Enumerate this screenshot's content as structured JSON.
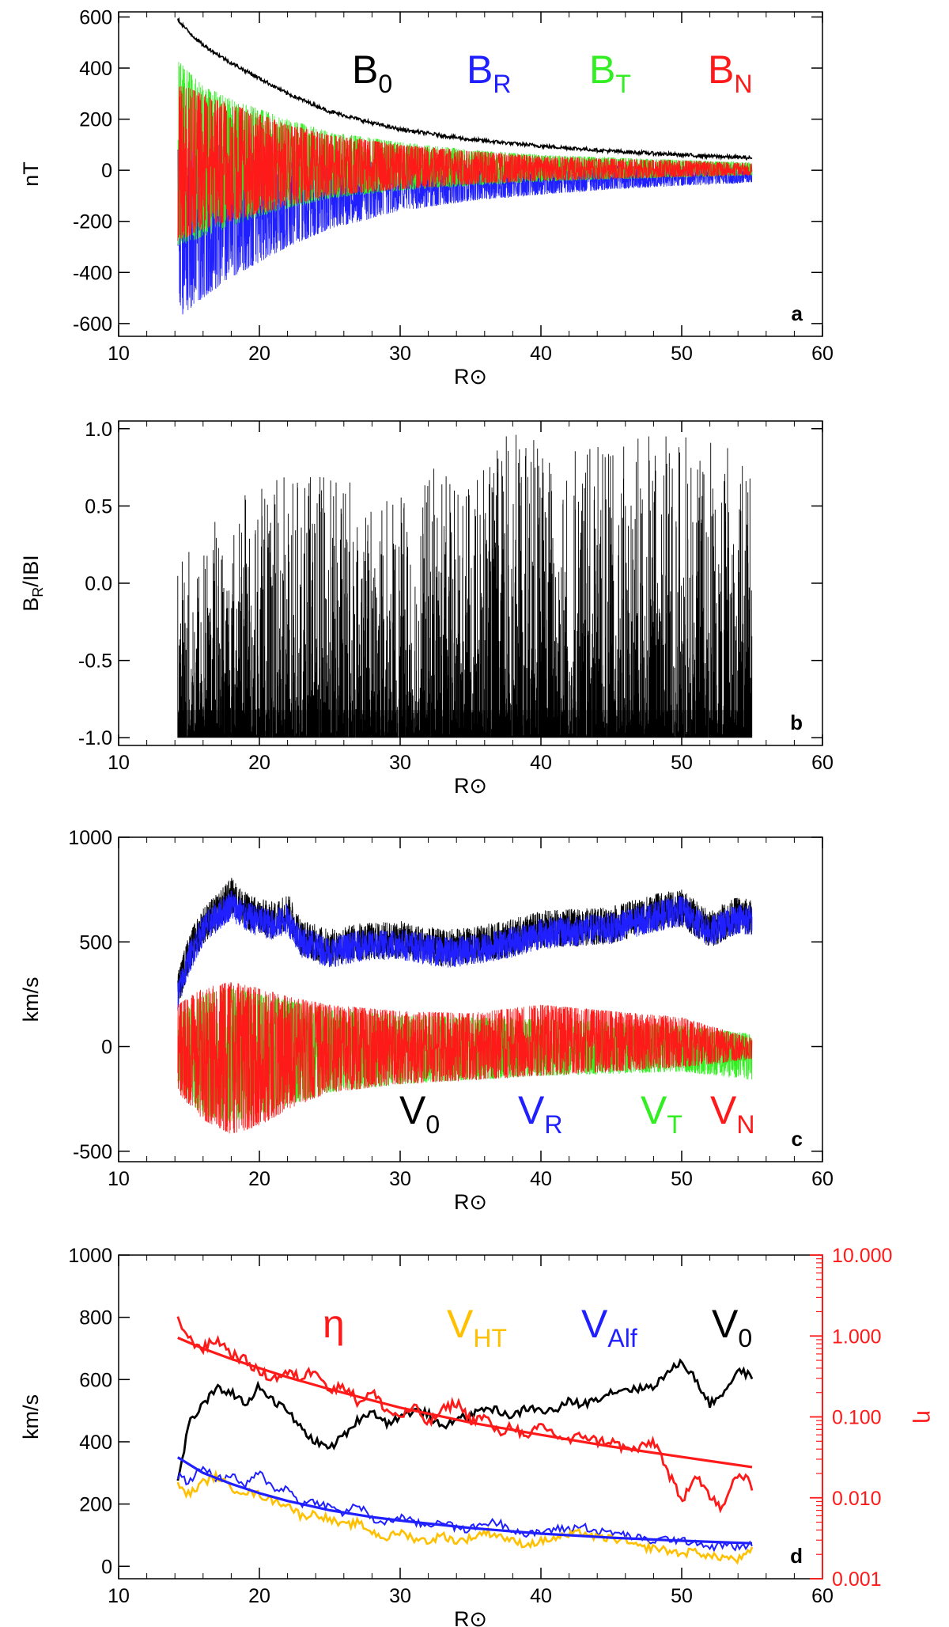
{
  "colors": {
    "black": "#000000",
    "blue": "#1f1fff",
    "green": "#33ee22",
    "red": "#ff1a1a",
    "orange": "#ffc000",
    "eta_axis": "#ff1a1a"
  },
  "chart_data": [
    {
      "id": "a",
      "type": "line",
      "panel_label": "a",
      "xlabel": "R⊙",
      "ylabel": "nT",
      "xlim": [
        10,
        60
      ],
      "ylim": [
        -650,
        620
      ],
      "xticks": [
        10,
        20,
        30,
        40,
        50,
        60
      ],
      "yticks": [
        -600,
        -400,
        -200,
        0,
        200,
        400,
        600
      ],
      "x_range_of_data": [
        14.2,
        55
      ],
      "legend": [
        {
          "base": "B",
          "sub": "0",
          "color": "#000000"
        },
        {
          "base": "B",
          "sub": "R",
          "color": "#1f1fff"
        },
        {
          "base": "B",
          "sub": "T",
          "color": "#33ee22"
        },
        {
          "base": "B",
          "sub": "N",
          "color": "#ff1a1a"
        }
      ],
      "series": [
        {
          "name": "B0",
          "kind": "envelope_line",
          "x": [
            14.2,
            15,
            16,
            18,
            20,
            22,
            25,
            28,
            30,
            35,
            40,
            45,
            50,
            55
          ],
          "values": [
            590,
            540,
            490,
            420,
            360,
            300,
            230,
            185,
            160,
            120,
            95,
            75,
            60,
            48
          ]
        },
        {
          "name": "BR",
          "kind": "band",
          "x": [
            14.2,
            16,
            18,
            20,
            22,
            25,
            30,
            35,
            40,
            45,
            50,
            55
          ],
          "values_low": [
            -580,
            -500,
            -420,
            -360,
            -300,
            -230,
            -160,
            -120,
            -95,
            -75,
            -60,
            -48
          ],
          "values_high": [
            120,
            110,
            90,
            80,
            60,
            45,
            30,
            25,
            20,
            18,
            15,
            10
          ]
        },
        {
          "name": "BT",
          "kind": "band",
          "x": [
            14.2,
            16,
            18,
            20,
            22,
            25,
            30,
            35,
            40,
            45,
            50,
            55
          ],
          "values_low": [
            -300,
            -260,
            -220,
            -180,
            -150,
            -110,
            -80,
            -60,
            -45,
            -35,
            -28,
            -20
          ],
          "values_high": [
            430,
            330,
            280,
            240,
            200,
            150,
            110,
            80,
            60,
            50,
            40,
            30
          ]
        },
        {
          "name": "BN",
          "kind": "band",
          "x": [
            14.2,
            16,
            18,
            20,
            22,
            25,
            30,
            35,
            40,
            45,
            50,
            55
          ],
          "values_low": [
            -280,
            -230,
            -200,
            -170,
            -140,
            -100,
            -75,
            -55,
            -42,
            -33,
            -26,
            -20
          ],
          "values_high": [
            340,
            300,
            260,
            220,
            180,
            140,
            100,
            75,
            55,
            45,
            38,
            28
          ]
        }
      ]
    },
    {
      "id": "b",
      "type": "line",
      "panel_label": "b",
      "xlabel": "R⊙",
      "ylabel": "BR/IBI",
      "ylabel_base": "B",
      "ylabel_sub": "R",
      "ylabel_rest": "/IBI",
      "xlim": [
        10,
        60
      ],
      "ylim": [
        -1.05,
        1.05
      ],
      "xticks": [
        10,
        20,
        30,
        40,
        50,
        60
      ],
      "yticks": [
        -1.0,
        -0.5,
        0.0,
        0.5,
        1.0
      ],
      "ytick_labels": [
        "-1.0",
        "-0.5",
        "0.0",
        "0.5",
        "1.0"
      ],
      "x_range_of_data": [
        14.2,
        55
      ],
      "series": [
        {
          "name": "BR/|B|",
          "kind": "spikes",
          "x": [
            15,
            17.5,
            20,
            22.5,
            25,
            27.5,
            30,
            32.5,
            35,
            37.5,
            40,
            42.5,
            45,
            47.5,
            50,
            52.5,
            55
          ],
          "peak_values": [
            0.25,
            0.45,
            0.65,
            0.7,
            0.72,
            0.6,
            0.55,
            0.75,
            0.6,
            0.95,
            1.0,
            0.85,
            0.9,
            0.95,
            0.95,
            0.9,
            1.0
          ],
          "baseline": -1.0
        }
      ]
    },
    {
      "id": "c",
      "type": "line",
      "panel_label": "c",
      "xlabel": "R⊙",
      "ylabel": "km/s",
      "xlim": [
        10,
        60
      ],
      "ylim": [
        -550,
        1000
      ],
      "xticks": [
        10,
        20,
        30,
        40,
        50,
        60
      ],
      "yticks": [
        -500,
        0,
        500,
        1000
      ],
      "x_range_of_data": [
        14.2,
        55
      ],
      "legend": [
        {
          "base": "V",
          "sub": "0",
          "color": "#000000"
        },
        {
          "base": "V",
          "sub": "R",
          "color": "#1f1fff"
        },
        {
          "base": "V",
          "sub": "T",
          "color": "#33ee22"
        },
        {
          "base": "V",
          "sub": "N",
          "color": "#ff1a1a"
        }
      ],
      "series": [
        {
          "name": "V0",
          "kind": "line",
          "x": [
            14.2,
            15,
            16,
            17,
            18,
            19,
            20,
            21,
            22,
            23,
            25,
            27,
            30,
            33,
            35,
            38,
            40,
            43,
            45,
            48,
            50,
            52,
            54,
            55
          ],
          "values": [
            270,
            450,
            580,
            640,
            720,
            650,
            620,
            600,
            650,
            520,
            470,
            500,
            510,
            470,
            480,
            520,
            560,
            570,
            580,
            640,
            660,
            560,
            630,
            610
          ]
        },
        {
          "name": "VR",
          "kind": "line",
          "x": [
            14.2,
            15,
            16,
            17,
            18,
            19,
            20,
            21,
            22,
            23,
            25,
            27,
            30,
            33,
            35,
            38,
            40,
            43,
            45,
            48,
            50,
            52,
            54,
            55
          ],
          "values": [
            240,
            420,
            560,
            620,
            680,
            620,
            600,
            580,
            610,
            500,
            450,
            480,
            490,
            450,
            460,
            500,
            540,
            555,
            565,
            620,
            650,
            545,
            615,
            600
          ]
        },
        {
          "name": "VT",
          "kind": "band",
          "x": [
            14.2,
            16,
            18,
            20,
            22,
            25,
            30,
            35,
            40,
            45,
            50,
            55
          ],
          "values_low": [
            -200,
            -330,
            -360,
            -330,
            -280,
            -220,
            -180,
            -160,
            -140,
            -130,
            -120,
            -160
          ],
          "values_high": [
            150,
            250,
            280,
            250,
            220,
            180,
            150,
            140,
            130,
            120,
            100,
            60
          ]
        },
        {
          "name": "VN",
          "kind": "band",
          "x": [
            14.2,
            16,
            18,
            20,
            22,
            25,
            30,
            35,
            40,
            45,
            50,
            55
          ],
          "values_low": [
            -220,
            -350,
            -420,
            -380,
            -300,
            -220,
            -180,
            -160,
            -140,
            -120,
            -100,
            -60
          ],
          "values_high": [
            200,
            280,
            310,
            280,
            240,
            200,
            170,
            160,
            200,
            170,
            140,
            40
          ]
        }
      ]
    },
    {
      "id": "d",
      "type": "line",
      "panel_label": "d",
      "xlabel": "R⊙",
      "ylabel": "km/s",
      "ylabel_right": "η",
      "xlim": [
        10,
        60
      ],
      "ylim": [
        -40,
        1000
      ],
      "xticks": [
        10,
        20,
        30,
        40,
        50,
        60
      ],
      "yticks": [
        0,
        200,
        400,
        600,
        800,
        1000
      ],
      "y2_scale": "log",
      "y2lim": [
        0.001,
        10
      ],
      "y2ticks": [
        0.001,
        0.01,
        0.1,
        1,
        10
      ],
      "y2tick_labels": [
        "0.001",
        "0.010",
        "0.100",
        "1.000",
        "10.000"
      ],
      "legend": [
        {
          "base": "η",
          "sub": "",
          "color": "#ff1a1a"
        },
        {
          "base": "V",
          "sub": "HT",
          "color": "#ffc000"
        },
        {
          "base": "V",
          "sub": "Alf",
          "color": "#1f1fff"
        },
        {
          "base": "V",
          "sub": "0",
          "color": "#000000"
        }
      ],
      "series": [
        {
          "name": "V0",
          "axis": "left",
          "x": [
            14.2,
            15,
            16,
            17,
            18,
            19,
            20,
            21,
            22,
            23,
            24,
            25,
            26,
            27,
            28,
            29,
            30,
            31,
            32,
            33,
            34,
            35,
            36,
            37,
            38,
            39,
            40,
            41,
            42,
            43,
            44,
            45,
            46,
            47,
            48,
            49,
            50,
            51,
            52,
            53,
            54,
            55
          ],
          "values": [
            270,
            460,
            520,
            570,
            560,
            520,
            580,
            530,
            500,
            440,
            400,
            380,
            420,
            470,
            500,
            460,
            480,
            500,
            490,
            440,
            480,
            480,
            510,
            500,
            480,
            510,
            500,
            500,
            530,
            520,
            540,
            560,
            570,
            570,
            580,
            620,
            660,
            600,
            520,
            560,
            630,
            610
          ]
        },
        {
          "name": "VAlf",
          "axis": "left",
          "x": [
            14.2,
            15,
            16,
            17,
            18,
            19,
            20,
            21,
            22,
            23,
            24,
            25,
            26,
            27,
            28,
            29,
            30,
            31,
            32,
            33,
            34,
            35,
            36,
            37,
            38,
            39,
            40,
            41,
            42,
            43,
            44,
            45,
            46,
            47,
            48,
            49,
            50,
            51,
            52,
            53,
            54,
            55
          ],
          "values": [
            290,
            270,
            320,
            280,
            290,
            260,
            300,
            250,
            250,
            200,
            210,
            190,
            170,
            200,
            150,
            140,
            160,
            140,
            130,
            150,
            120,
            120,
            140,
            140,
            120,
            100,
            110,
            120,
            120,
            130,
            110,
            110,
            100,
            90,
            80,
            90,
            80,
            80,
            60,
            70,
            60,
            70
          ]
        },
        {
          "name": "VHT",
          "axis": "left",
          "x": [
            14.2,
            15,
            16,
            17,
            18,
            19,
            20,
            21,
            22,
            23,
            24,
            25,
            26,
            27,
            28,
            29,
            30,
            31,
            32,
            33,
            34,
            35,
            36,
            37,
            38,
            39,
            40,
            41,
            42,
            43,
            44,
            45,
            46,
            47,
            48,
            49,
            50,
            51,
            52,
            53,
            54,
            55
          ],
          "values": [
            260,
            230,
            270,
            290,
            250,
            240,
            230,
            210,
            200,
            160,
            170,
            150,
            130,
            140,
            110,
            90,
            110,
            90,
            80,
            100,
            80,
            90,
            110,
            100,
            80,
            70,
            80,
            90,
            100,
            110,
            90,
            90,
            80,
            60,
            60,
            50,
            40,
            50,
            30,
            30,
            20,
            50
          ]
        },
        {
          "name": "VAlf fit",
          "axis": "left",
          "x": [
            14.2,
            16,
            18,
            20,
            22,
            25,
            28,
            30,
            35,
            40,
            45,
            50,
            55
          ],
          "values": [
            350,
            300,
            265,
            235,
            210,
            180,
            158,
            147,
            123,
            105,
            92,
            82,
            74
          ]
        },
        {
          "name": "η",
          "axis": "right",
          "x": [
            14.2,
            15,
            16,
            17,
            18,
            19,
            20,
            21,
            22,
            23,
            24,
            25,
            26,
            27,
            28,
            29,
            30,
            31,
            32,
            33,
            34,
            35,
            36,
            37,
            38,
            39,
            40,
            41,
            42,
            43,
            44,
            45,
            46,
            47,
            48,
            49,
            50,
            51,
            52,
            53,
            54,
            55
          ],
          "values": [
            1.6,
            0.9,
            0.7,
            0.9,
            0.6,
            0.5,
            0.35,
            0.3,
            0.35,
            0.3,
            0.4,
            0.2,
            0.25,
            0.15,
            0.2,
            0.12,
            0.1,
            0.13,
            0.08,
            0.12,
            0.15,
            0.09,
            0.1,
            0.06,
            0.08,
            0.05,
            0.08,
            0.06,
            0.05,
            0.06,
            0.05,
            0.05,
            0.04,
            0.04,
            0.05,
            0.02,
            0.008,
            0.02,
            0.01,
            0.007,
            0.02,
            0.014
          ]
        },
        {
          "name": "η fit",
          "axis": "right",
          "x": [
            14.2,
            16,
            18,
            20,
            22,
            25,
            28,
            30,
            35,
            40,
            45,
            50,
            55
          ],
          "values": [
            0.95,
            0.7,
            0.52,
            0.4,
            0.31,
            0.22,
            0.16,
            0.13,
            0.085,
            0.06,
            0.043,
            0.032,
            0.024
          ]
        }
      ]
    }
  ]
}
